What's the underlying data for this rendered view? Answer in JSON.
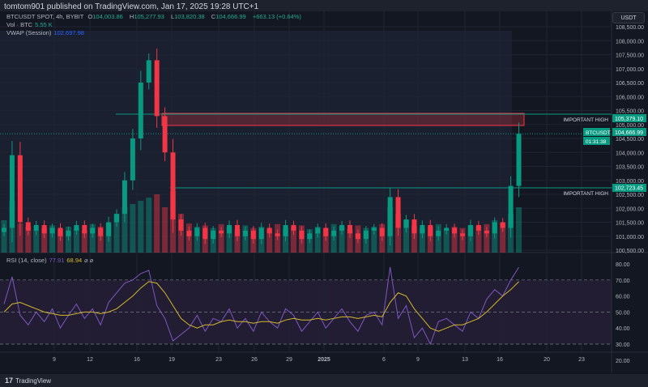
{
  "header": {
    "published": "tomtom901 published on TradingView.com, Jan 17, 2025 19:28 UTC+1"
  },
  "legend": {
    "symbol": "BTCUSDT SPOT, 4h, BYBIT",
    "o_label": "O",
    "o": "104,003.86",
    "h_label": "H",
    "h": "105,277.93",
    "l_label": "L",
    "l": "103,820.38",
    "c_label": "C",
    "c": "104,666.99",
    "change": "+663.13 (+0.64%)",
    "vol_label": "Vol · BTC",
    "vol": "5.55 K",
    "vwap_label": "VWAP (Session)",
    "vwap": "102,697.98",
    "rsi_label": "RSI (14, close)",
    "rsi": "77.91",
    "rsi_ma": "68.94",
    "icons": "⌀ ⌀"
  },
  "currency": "USDT",
  "footer": {
    "brand": "TradingView",
    "logo": "17"
  },
  "colors": {
    "up": "#089981",
    "down": "#f23645",
    "vwap": "#2962ff",
    "rsi": "#7e57c2",
    "rsi_ma": "#d4b82c",
    "zone": "#f23645",
    "level": "#089981"
  },
  "annotations": {
    "high1_label": "IMPORTANT HIGH",
    "high1_price": "105,379.10",
    "high2_label": "IMPORTANT HIGH",
    "high2_price": "102,723.45",
    "symbol_tag": "BTCUSDT",
    "last_price": "104,666.99",
    "countdown": "01:31:38"
  },
  "chart_data": {
    "type": "candlestick",
    "price_axis": [
      "108,500.00",
      "108,000.00",
      "107,500.00",
      "107,000.00",
      "106,500.00",
      "106,000.00",
      "105,500.00",
      "105,000.00",
      "104,500.00",
      "104,000.00",
      "103,500.00",
      "103,000.00",
      "102,500.00",
      "102,000.00",
      "101,500.00",
      "101,000.00",
      "100,500.00"
    ],
    "ylim": [
      100500,
      108500
    ],
    "x_ticks": [
      "9",
      "12",
      "16",
      "19",
      "23",
      "26",
      "29",
      "2025",
      "6",
      "9",
      "13",
      "16",
      "20",
      "23"
    ],
    "closes": [
      101300,
      103900,
      101500,
      101200,
      101400,
      101100,
      101300,
      101000,
      101200,
      101400,
      101100,
      101300,
      101000,
      101500,
      101800,
      103000,
      104500,
      106500,
      107300,
      105300,
      104000,
      101600,
      101200,
      101000,
      101300,
      100900,
      101200,
      101100,
      101400,
      101000,
      101200,
      100900,
      101300,
      101100,
      101000,
      101400,
      101200,
      100900,
      101100,
      101300,
      101000,
      101200,
      101400,
      101100,
      100900,
      101200,
      101300,
      101000,
      102400,
      101300,
      101600,
      101100,
      101400,
      101000,
      101200,
      101300,
      101100,
      101000,
      101400,
      101200,
      101100,
      101500,
      101300,
      102800,
      104666.99
    ],
    "volumes": [
      50,
      80,
      45,
      40,
      35,
      38,
      42,
      36,
      40,
      38,
      35,
      44,
      40,
      45,
      60,
      70,
      75,
      80,
      85,
      90,
      70,
      95,
      60,
      45,
      40,
      42,
      38,
      44,
      40,
      36,
      42,
      38,
      40,
      36,
      44,
      38,
      40,
      42,
      36,
      40,
      38,
      44,
      40,
      36,
      42,
      38,
      40,
      44,
      70,
      60,
      50,
      42,
      38,
      40,
      44,
      36,
      40,
      38,
      42,
      40,
      44,
      50,
      46,
      60,
      70
    ],
    "rsi_axis": [
      "80.00",
      "70.00",
      "60.00",
      "50.00",
      "40.00",
      "30.00",
      "20.00"
    ],
    "rsi": [
      55,
      72,
      48,
      42,
      50,
      44,
      52,
      40,
      48,
      55,
      46,
      52,
      42,
      56,
      62,
      68,
      70,
      74,
      76,
      54,
      46,
      32,
      36,
      40,
      48,
      38,
      46,
      44,
      52,
      40,
      46,
      38,
      50,
      44,
      40,
      52,
      48,
      38,
      44,
      50,
      40,
      46,
      52,
      44,
      38,
      48,
      50,
      42,
      78,
      46,
      54,
      34,
      40,
      30,
      44,
      46,
      42,
      38,
      50,
      46,
      58,
      64,
      60,
      70,
      77.91
    ],
    "rsi_ma": [
      50,
      55,
      56,
      54,
      52,
      50,
      49,
      48,
      48,
      49,
      50,
      50,
      49,
      50,
      52,
      56,
      60,
      65,
      69,
      68,
      62,
      54,
      46,
      42,
      40,
      42,
      42,
      44,
      45,
      44,
      44,
      43,
      44,
      44,
      43,
      45,
      46,
      45,
      45,
      46,
      45,
      46,
      47,
      47,
      46,
      47,
      48,
      47,
      56,
      62,
      60,
      52,
      46,
      40,
      38,
      40,
      42,
      42,
      44,
      46,
      50,
      55,
      60,
      64,
      68.94
    ],
    "rsi_bands": [
      70,
      50,
      30
    ]
  }
}
